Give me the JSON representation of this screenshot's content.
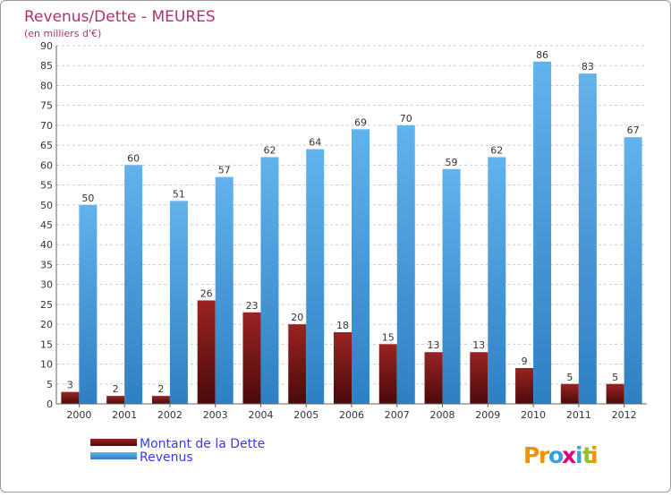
{
  "title": "Revenus/Dette - MEURES",
  "subtitle": "(en milliers d'€)",
  "brand": {
    "letters": [
      "P",
      "r",
      "o",
      "x",
      "i",
      "t",
      "i"
    ],
    "letter_colors": [
      "#f39200",
      "#f39200",
      "#3aa0dc",
      "#e2007a",
      "#3aa0dc",
      "#95c11f",
      "#f39200"
    ]
  },
  "colors": {
    "title": "#b0326d",
    "dette": "#8b1a1a",
    "dette_dark": "#4a0a0a",
    "revenus": "#5aaae6",
    "revenus_dark": "#2f7fc4",
    "legend_text": "#3a3af0"
  },
  "chart_data": {
    "type": "bar",
    "categories": [
      "2000",
      "2001",
      "2002",
      "2003",
      "2004",
      "2005",
      "2006",
      "2007",
      "2008",
      "2009",
      "2010",
      "2011",
      "2012"
    ],
    "series": [
      {
        "name": "Montant de la Dette",
        "values": [
          3,
          2,
          2,
          26,
          23,
          20,
          18,
          15,
          13,
          13,
          9,
          5,
          5
        ]
      },
      {
        "name": "Revenus",
        "values": [
          50,
          60,
          51,
          57,
          62,
          64,
          69,
          70,
          59,
          62,
          86,
          83,
          67
        ]
      }
    ],
    "title": "Revenus/Dette - MEURES",
    "ylabel": "(en milliers d'€)",
    "ylim": [
      0,
      90
    ],
    "yticks": [
      0,
      5,
      10,
      15,
      20,
      25,
      30,
      35,
      40,
      45,
      50,
      55,
      60,
      65,
      70,
      75,
      80,
      85,
      90
    ],
    "grid": true,
    "legend": "bottom-left"
  }
}
